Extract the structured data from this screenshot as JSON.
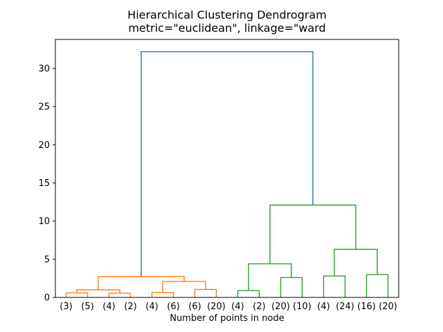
{
  "chart_data": {
    "type": "dendrogram",
    "title": "Hierarchical Clustering Dendrogram",
    "subtitle": "metric=\"euclidean\", linkage=\"ward",
    "xlabel": "Number of points in node",
    "leaf_labels": [
      "(3)",
      "(5)",
      "(4)",
      "(2)",
      "(4)",
      "(6)",
      "(6)",
      "(20)",
      "(4)",
      "(2)",
      "(20)",
      "(10)",
      "(4)",
      "(24)",
      "(16)",
      "(20)"
    ],
    "yticks": [
      0,
      5,
      10,
      15,
      20,
      25,
      30
    ],
    "ylim": [
      0,
      33.8
    ],
    "grid": false,
    "legend": "none",
    "colors": {
      "blue": "#1f77b4",
      "orange": "#ff7f0e",
      "green": "#2ca02c"
    },
    "merges": [
      {
        "id": "O1",
        "a": "L0",
        "b": "L1",
        "h": 0.6,
        "color": "orange"
      },
      {
        "id": "O2",
        "a": "L2",
        "b": "L3",
        "h": 0.55,
        "color": "orange"
      },
      {
        "id": "O3",
        "a": "O1",
        "b": "O2",
        "h": 1.0,
        "color": "orange"
      },
      {
        "id": "O4",
        "a": "L4",
        "b": "L5",
        "h": 0.65,
        "color": "orange"
      },
      {
        "id": "O5",
        "a": "L6",
        "b": "L7",
        "h": 1.05,
        "color": "orange"
      },
      {
        "id": "O6",
        "a": "O4",
        "b": "O5",
        "h": 2.1,
        "color": "orange"
      },
      {
        "id": "O7",
        "a": "O3",
        "b": "O6",
        "h": 2.75,
        "color": "orange"
      },
      {
        "id": "G1",
        "a": "L8",
        "b": "L9",
        "h": 0.9,
        "color": "green"
      },
      {
        "id": "G2",
        "a": "L10",
        "b": "L11",
        "h": 2.6,
        "color": "green"
      },
      {
        "id": "G3",
        "a": "G1",
        "b": "G2",
        "h": 4.4,
        "color": "green"
      },
      {
        "id": "G4",
        "a": "L12",
        "b": "L13",
        "h": 2.8,
        "color": "green"
      },
      {
        "id": "G5",
        "a": "L14",
        "b": "L15",
        "h": 3.0,
        "color": "green"
      },
      {
        "id": "G6",
        "a": "G4",
        "b": "G5",
        "h": 6.3,
        "color": "green"
      },
      {
        "id": "G7",
        "a": "G3",
        "b": "G6",
        "h": 12.1,
        "color": "green"
      },
      {
        "id": "R",
        "a": "O7",
        "b": "G7",
        "h": 32.2,
        "color": "blue"
      }
    ]
  }
}
